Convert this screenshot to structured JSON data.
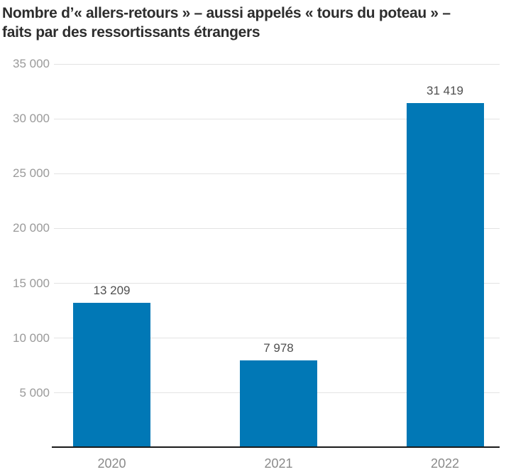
{
  "chart_data": {
    "type": "bar",
    "title": "Nombre d’« allers-retours » – aussi appelés « tours du poteau » – faits par des ressortissants étrangers",
    "title_lines": [
      "Nombre d’« allers-retours » – aussi appelés « tours du poteau » –",
      "faits par des ressortissants étrangers"
    ],
    "categories": [
      "2020",
      "2021",
      "2022"
    ],
    "values": [
      13209,
      7978,
      31419
    ],
    "value_labels": [
      "13 209",
      "7 978",
      "31 419"
    ],
    "xlabel": "",
    "ylabel": "",
    "ylim": [
      0,
      35000
    ],
    "yticks": [
      {
        "value": 35000,
        "label": "35 000"
      },
      {
        "value": 30000,
        "label": "30 000"
      },
      {
        "value": 25000,
        "label": "25 000"
      },
      {
        "value": 20000,
        "label": "20 000"
      },
      {
        "value": 15000,
        "label": "15 000"
      },
      {
        "value": 10000,
        "label": "10 000"
      },
      {
        "value": 5000,
        "label": "5 000"
      }
    ],
    "grid": true,
    "legend": "none",
    "colors": {
      "bar": "#0178b6",
      "title": "#2d2d2d",
      "ytick_label": "#9a9a9a",
      "value_label": "#4f4f4f",
      "xtick_label": "#8a8a8a",
      "gridline": "#e3e3e3",
      "axis_line": "#1a1a1a"
    }
  }
}
